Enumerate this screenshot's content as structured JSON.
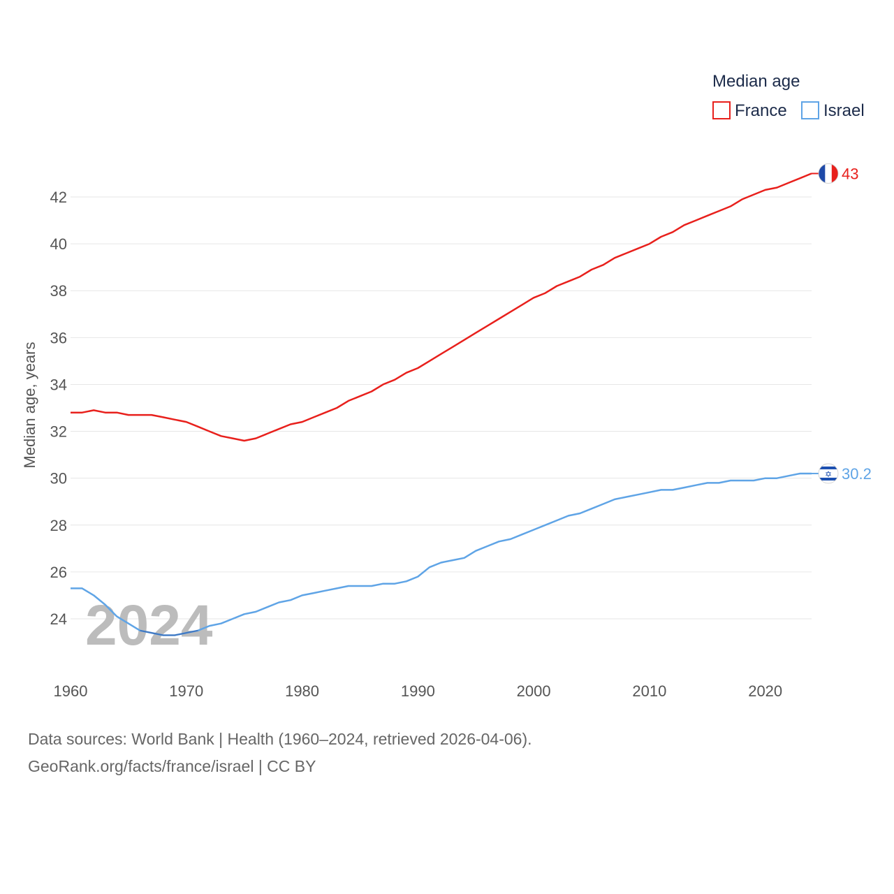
{
  "chart_data": {
    "type": "line",
    "legend_title": "Median age",
    "ylabel": "Median age, years",
    "xlabel": "",
    "ylim": [
      22,
      43
    ],
    "xlim": [
      1960,
      2024
    ],
    "y_ticks": [
      24,
      26,
      28,
      30,
      32,
      34,
      36,
      38,
      40,
      42
    ],
    "x_ticks": [
      1960,
      1970,
      1980,
      1990,
      2000,
      2010,
      2020
    ],
    "grid": true,
    "legend_position": "top-right",
    "year_watermark": "2024",
    "x": [
      1960,
      1961,
      1962,
      1963,
      1964,
      1965,
      1966,
      1967,
      1968,
      1969,
      1970,
      1971,
      1972,
      1973,
      1974,
      1975,
      1976,
      1977,
      1978,
      1979,
      1980,
      1981,
      1982,
      1983,
      1984,
      1985,
      1986,
      1987,
      1988,
      1989,
      1990,
      1991,
      1992,
      1993,
      1994,
      1995,
      1996,
      1997,
      1998,
      1999,
      2000,
      2001,
      2002,
      2003,
      2004,
      2005,
      2006,
      2007,
      2008,
      2009,
      2010,
      2011,
      2012,
      2013,
      2014,
      2015,
      2016,
      2017,
      2018,
      2019,
      2020,
      2021,
      2022,
      2023,
      2024
    ],
    "series": [
      {
        "name": "France",
        "color": "#e8201c",
        "end_label": "43",
        "flag": "france-flag",
        "values": [
          32.8,
          32.8,
          32.9,
          32.8,
          32.8,
          32.7,
          32.7,
          32.7,
          32.6,
          32.5,
          32.4,
          32.2,
          32.0,
          31.8,
          31.7,
          31.6,
          31.7,
          31.9,
          32.1,
          32.3,
          32.4,
          32.6,
          32.8,
          33.0,
          33.3,
          33.5,
          33.7,
          34.0,
          34.2,
          34.5,
          34.7,
          35.0,
          35.3,
          35.6,
          35.9,
          36.2,
          36.5,
          36.8,
          37.1,
          37.4,
          37.7,
          37.9,
          38.2,
          38.4,
          38.6,
          38.9,
          39.1,
          39.4,
          39.6,
          39.8,
          40.0,
          40.3,
          40.5,
          40.8,
          41.0,
          41.2,
          41.4,
          41.6,
          41.9,
          42.1,
          42.3,
          42.4,
          42.6,
          42.8,
          43.0
        ]
      },
      {
        "name": "Israel",
        "color": "#5fa4e6",
        "end_label": "30.2",
        "flag": "israel-flag",
        "values": [
          25.3,
          25.3,
          25.0,
          24.6,
          24.1,
          23.8,
          23.5,
          23.4,
          23.3,
          23.3,
          23.4,
          23.5,
          23.7,
          23.8,
          24.0,
          24.2,
          24.3,
          24.5,
          24.7,
          24.8,
          25.0,
          25.1,
          25.2,
          25.3,
          25.4,
          25.4,
          25.4,
          25.5,
          25.5,
          25.6,
          25.8,
          26.2,
          26.4,
          26.5,
          26.6,
          26.9,
          27.1,
          27.3,
          27.4,
          27.6,
          27.8,
          28.0,
          28.2,
          28.4,
          28.5,
          28.7,
          28.9,
          29.1,
          29.2,
          29.3,
          29.4,
          29.5,
          29.5,
          29.6,
          29.7,
          29.8,
          29.8,
          29.9,
          29.9,
          29.9,
          30.0,
          30.0,
          30.1,
          30.2,
          30.2
        ]
      }
    ]
  },
  "footer": {
    "line1": "Data sources: World Bank | Health (1960–2024, retrieved 2026-04-06).",
    "line2": "GeoRank.org/facts/france/israel | CC BY"
  }
}
